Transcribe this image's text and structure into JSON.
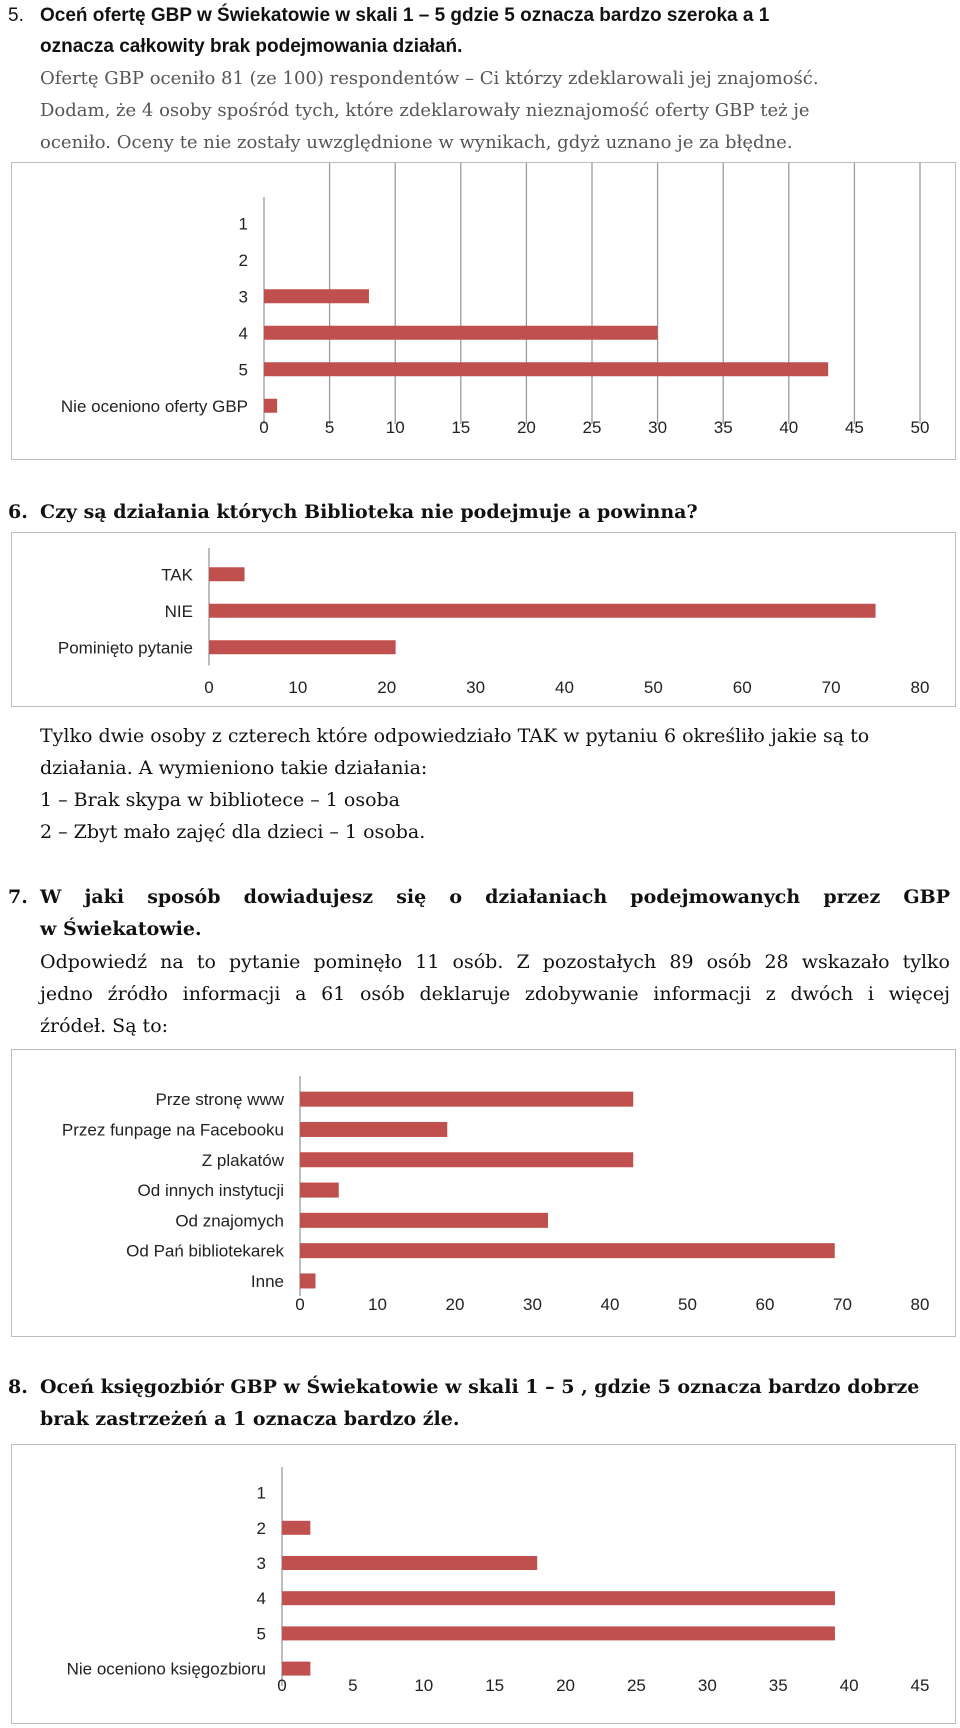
{
  "q5": {
    "number": "5.",
    "heading_line1": "Oceń ofertę GBP w Świekatowie w skali 1 – 5 gdzie 5 oznacza bardzo szeroka a 1",
    "heading_line2": "oznacza całkowity brak podejmowania działań.",
    "para_line1": "Ofertę GBP oceniło 81 (ze 100) respondentów – Ci którzy zdeklarowali jej znajomość.",
    "para_line2": "Dodam, że 4 osoby spośród tych, które zdeklarowały nieznajomość oferty GBP też je",
    "para_line3": "oceniło. Oceny te nie zostały uwzględnione w wynikach, gdyż uznano je za błędne."
  },
  "q6": {
    "number": "6.",
    "heading": "Czy są działania których Biblioteka nie podejmuje a powinna?",
    "para_line1": "Tylko dwie osoby z czterech które odpowiedziało TAK w pytaniu 6 określiło jakie są to",
    "para_line2": "działania. A wymieniono takie działania:",
    "item1": "1 – Brak skypa w bibliotece – 1 osoba",
    "item2": "2 – Zbyt mało zajęć dla dzieci – 1 osoba."
  },
  "q7": {
    "number": "7.",
    "heading_line1": "W jaki sposób dowiadujesz się o działaniach podejmowanych przez GBP",
    "heading_line2": "w Świekatowie.",
    "para_line1": "Odpowiedź na to pytanie pominęło 11 osób. Z pozostałych 89 osób 28 wskazało tylko",
    "para_line2": "jedno źródło informacji a 61 osób deklaruje zdobywanie informacji z dwóch i więcej",
    "para_line3": "źródeł. Są to:"
  },
  "q8": {
    "number": "8.",
    "heading_line1": "Oceń księgozbiór GBP w Świekatowie w skali 1 – 5 , gdzie 5 oznacza bardzo dobrze",
    "heading_line2": "brak zastrzeżeń a 1 oznacza bardzo źle."
  },
  "bar_color": "#c0504d",
  "chart_data": [
    {
      "type": "bar",
      "orientation": "horizontal",
      "categories": [
        "1",
        "2",
        "3",
        "4",
        "5",
        "Nie oceniono oferty GBP"
      ],
      "values": [
        0,
        0,
        8,
        30,
        43,
        1
      ],
      "xlim": [
        0,
        50
      ],
      "xticks": [
        0,
        5,
        10,
        15,
        20,
        25,
        30,
        35,
        40,
        45,
        50
      ],
      "grid": "vertical"
    },
    {
      "type": "bar",
      "orientation": "horizontal",
      "categories": [
        "TAK",
        "NIE",
        "Pominięto pytanie"
      ],
      "values": [
        4,
        75,
        21
      ],
      "xlim": [
        0,
        80
      ],
      "xticks": [
        0,
        10,
        20,
        30,
        40,
        50,
        60,
        70,
        80
      ],
      "grid": "none"
    },
    {
      "type": "bar",
      "orientation": "horizontal",
      "categories": [
        "Prze stronę www",
        "Przez funpage na Facebooku",
        "Z plakatów",
        "Od innych instytucji",
        "Od znajomych",
        "Od Pań bibliotekarek",
        "Inne"
      ],
      "values": [
        43,
        19,
        43,
        5,
        32,
        69,
        2
      ],
      "xlim": [
        0,
        80
      ],
      "xticks": [
        0,
        10,
        20,
        30,
        40,
        50,
        60,
        70,
        80
      ],
      "grid": "none"
    },
    {
      "type": "bar",
      "orientation": "horizontal",
      "categories": [
        "1",
        "2",
        "3",
        "4",
        "5",
        "Nie oceniono księgozbioru"
      ],
      "values": [
        0,
        2,
        18,
        39,
        39,
        2
      ],
      "xlim": [
        0,
        45
      ],
      "xticks": [
        0,
        5,
        10,
        15,
        20,
        25,
        30,
        35,
        40,
        45
      ],
      "grid": "none"
    }
  ]
}
